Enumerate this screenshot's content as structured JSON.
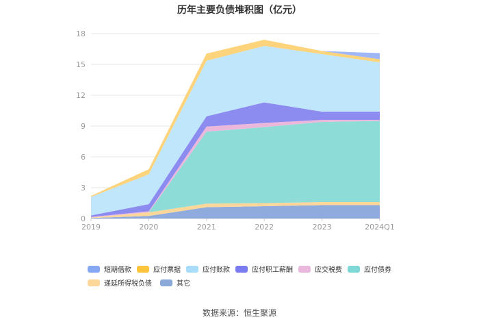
{
  "chart_data": {
    "type": "area",
    "stacked": true,
    "title": "历年主要负债堆积图（亿元）",
    "x": [
      "2019",
      "2020",
      "2021",
      "2022",
      "2023",
      "2024Q1"
    ],
    "y_ticks": [
      "0",
      "3",
      "6",
      "9",
      "12",
      "15",
      "18"
    ],
    "ylim": [
      0,
      18
    ],
    "grid": true,
    "legend_position": "bottom",
    "series": [
      {
        "name": "其它",
        "color": "#8faadc",
        "values": [
          0.05,
          0.25,
          1.1,
          1.2,
          1.3,
          1.3
        ]
      },
      {
        "name": "递延所得税负债",
        "color": "#fcd799",
        "values": [
          0.05,
          0.35,
          0.35,
          0.3,
          0.3,
          0.3
        ]
      },
      {
        "name": "应付债券",
        "color": "#8edcd8",
        "values": [
          0.0,
          0.0,
          7.0,
          7.4,
          7.8,
          7.9
        ]
      },
      {
        "name": "应交税费",
        "color": "#ebb8dc",
        "values": [
          0.05,
          0.1,
          0.5,
          0.4,
          0.2,
          0.1
        ]
      },
      {
        "name": "应付职工薪酬",
        "color": "#8c8cf0",
        "values": [
          0.15,
          0.7,
          1.0,
          2.0,
          0.8,
          0.8
        ]
      },
      {
        "name": "应付账款",
        "color": "#bfe6fb",
        "values": [
          1.8,
          2.9,
          5.4,
          5.5,
          5.6,
          4.8
        ]
      },
      {
        "name": "应付票据",
        "color": "#fdd37c",
        "values": [
          0.1,
          0.5,
          0.7,
          0.6,
          0.3,
          0.3
        ]
      },
      {
        "name": "短期借款",
        "color": "#9fb6f7",
        "values": [
          0.0,
          0.0,
          0.0,
          0.0,
          0.0,
          0.6
        ]
      }
    ],
    "legend_order": [
      "短期借款",
      "应付票据",
      "应付账款",
      "应付职工薪酬",
      "应交税费",
      "应付债券",
      "递延所得税负债",
      "其它"
    ],
    "legend_colors": {
      "短期借款": "#86a8f3",
      "应付票据": "#fec53c",
      "应付账款": "#a8dcf8",
      "应付职工薪酬": "#7b7bf0",
      "应交税费": "#eab8dd",
      "应付债券": "#7fd8d6",
      "递延所得税负债": "#fcd79a",
      "其它": "#8aa8d8"
    }
  },
  "source_text": "数据来源：恒生聚源"
}
